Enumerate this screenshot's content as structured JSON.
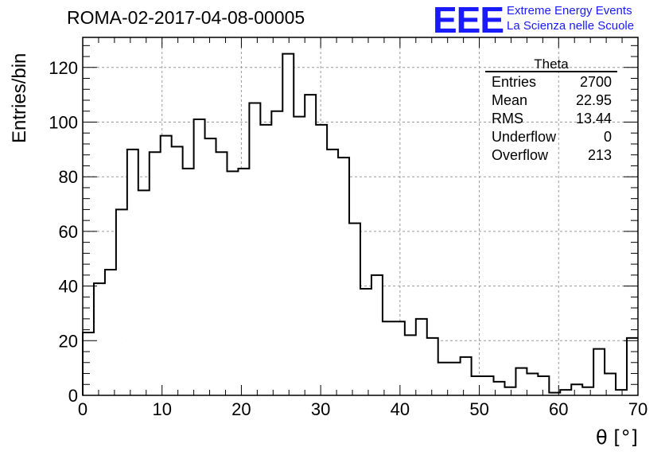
{
  "title": "ROMA-02-2017-04-08-00005",
  "logo": {
    "mark": "EEE",
    "line1": "Extreme Energy Events",
    "line2": "La Scienza nelle Scuole",
    "color": "#1a1aff"
  },
  "stats_box": {
    "title": "Theta",
    "rows": [
      {
        "label": "Entries",
        "value": "2700"
      },
      {
        "label": "Mean",
        "value": "22.95"
      },
      {
        "label": "RMS",
        "value": "13.44"
      },
      {
        "label": "Underflow",
        "value": "0"
      },
      {
        "label": "Overflow",
        "value": "213"
      }
    ]
  },
  "chart_data": {
    "type": "histogram",
    "xlabel": "θ [°]",
    "ylabel": "Entries/bin",
    "xlim": [
      0,
      70
    ],
    "ylim": [
      0,
      131
    ],
    "xticks": [
      0,
      10,
      20,
      30,
      40,
      50,
      60,
      70
    ],
    "yticks": [
      0,
      20,
      40,
      60,
      80,
      100,
      120
    ],
    "grid": true,
    "bin_width": 1.4,
    "values": [
      23,
      41,
      46,
      68,
      90,
      75,
      89,
      95,
      91,
      83,
      101,
      94,
      89,
      82,
      83,
      107,
      99,
      104,
      125,
      102,
      110,
      99,
      90,
      87,
      63,
      39,
      44,
      27,
      27,
      22,
      28,
      21,
      12,
      12,
      14,
      7,
      7,
      5,
      3,
      10,
      8,
      7,
      1,
      2,
      4,
      3,
      17,
      8,
      2,
      21
    ]
  }
}
